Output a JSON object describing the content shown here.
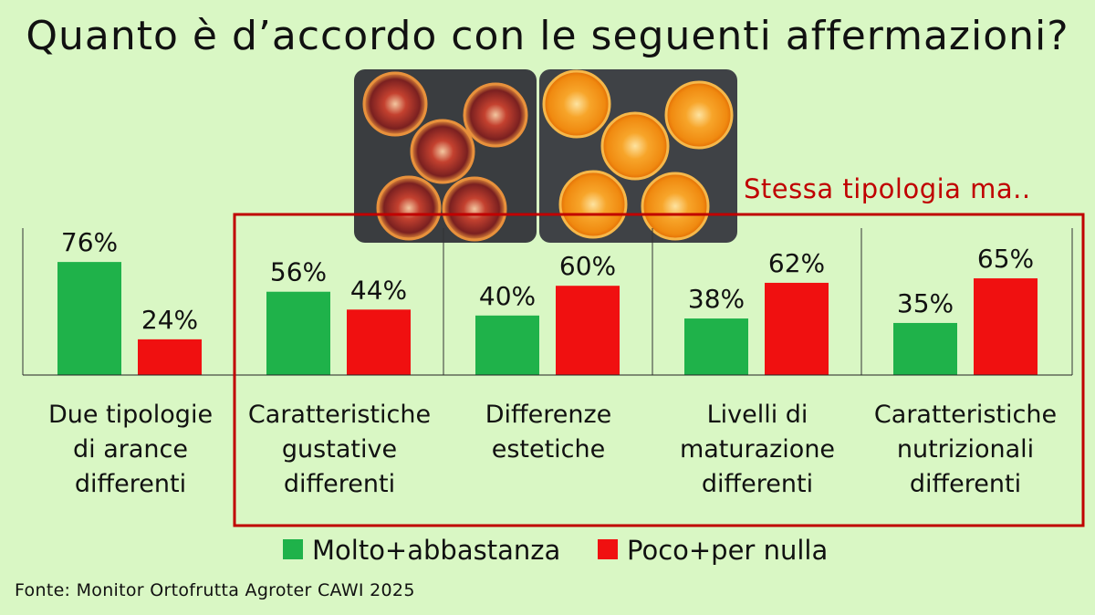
{
  "title": "Quanto è d’accordo con le seguenti affermazioni?",
  "subtitle": "Stessa tipologia ma..",
  "source": "Fonte: Monitor Ortofrutta Agroter CAWI 2025",
  "colors": {
    "green": "#1fb24a",
    "red": "#f01010",
    "box": "#c00000",
    "background": "#d9f7c4"
  },
  "chart_data": {
    "type": "bar",
    "categories": [
      "Due tipologie di arance differenti",
      "Caratteristiche gustative differenti",
      "Differenze estetiche",
      "Livelli di maturazione differenti",
      "Caratteristiche nutrizionali differenti"
    ],
    "category_lines": [
      [
        "Due tipologie",
        "di arance",
        "differenti"
      ],
      [
        "Caratteristiche",
        "gustative",
        "differenti"
      ],
      [
        "Differenze",
        "estetiche"
      ],
      [
        "Livelli di",
        "maturazione",
        "differenti"
      ],
      [
        "Caratteristiche",
        "nutrizionali",
        "differenti"
      ]
    ],
    "series": [
      {
        "name": "Molto+abbastanza",
        "color": "#1fb24a",
        "values": [
          76,
          56,
          40,
          38,
          35
        ]
      },
      {
        "name": "Poco+per nulla",
        "color": "#f01010",
        "values": [
          24,
          44,
          60,
          62,
          65
        ]
      }
    ],
    "value_suffix": "%",
    "ylim": [
      0,
      100
    ],
    "legend_position": "bottom"
  }
}
